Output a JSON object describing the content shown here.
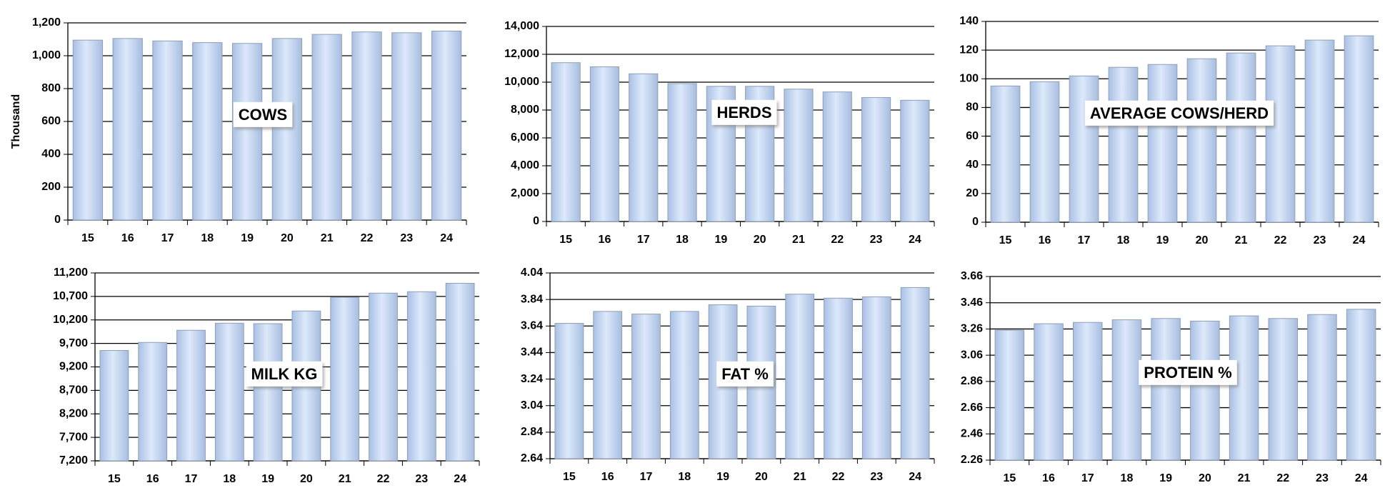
{
  "chart_data": [
    {
      "type": "bar",
      "title": "COWS",
      "y_label": "Thousand",
      "categories": [
        "15",
        "16",
        "17",
        "18",
        "19",
        "20",
        "21",
        "22",
        "23",
        "24"
      ],
      "values": [
        1095,
        1105,
        1090,
        1080,
        1075,
        1105,
        1130,
        1145,
        1140,
        1150
      ],
      "color": "#c9dcf7",
      "ylim": [
        0,
        1200
      ],
      "yticks": [
        0,
        200,
        400,
        600,
        800,
        {
          "value": 1000,
          "label": "1,000"
        },
        {
          "value": 1200,
          "label": "1,200"
        }
      ],
      "grid": true
    },
    {
      "type": "bar",
      "title": "HERDS",
      "categories": [
        "15",
        "16",
        "17",
        "18",
        "19",
        "20",
        "21",
        "22",
        "23",
        "24"
      ],
      "values": [
        11400,
        11100,
        10600,
        9900,
        9700,
        9700,
        9500,
        9300,
        8900,
        8700
      ],
      "color": "#c9dcf7",
      "ylim": [
        0,
        14000
      ],
      "yticks": [
        0,
        {
          "value": 2000,
          "label": "2,000"
        },
        {
          "value": 4000,
          "label": "4,000"
        },
        {
          "value": 6000,
          "label": "6,000"
        },
        {
          "value": 8000,
          "label": "8,000"
        },
        {
          "value": 10000,
          "label": "10,000"
        },
        {
          "value": 12000,
          "label": "12,000"
        },
        {
          "value": 14000,
          "label": "14,000"
        }
      ],
      "grid": true
    },
    {
      "type": "bar",
      "title": "AVERAGE COWS/HERD",
      "categories": [
        "15",
        "16",
        "17",
        "18",
        "19",
        "20",
        "21",
        "22",
        "23",
        "24"
      ],
      "values": [
        95,
        98,
        102,
        108,
        110,
        114,
        118,
        123,
        127,
        130
      ],
      "color": "#c9dcf7",
      "ylim": [
        0,
        140
      ],
      "yticks": [
        0,
        20,
        40,
        60,
        80,
        100,
        120,
        140
      ],
      "grid": true
    },
    {
      "type": "bar",
      "title": "MILK KG",
      "categories": [
        "15",
        "16",
        "17",
        "18",
        "19",
        "20",
        "21",
        "22",
        "23",
        "24"
      ],
      "values": [
        9550,
        9720,
        9980,
        10130,
        10120,
        10390,
        10680,
        10770,
        10800,
        10980
      ],
      "color": "#c9dcf7",
      "ylim": [
        7200,
        11200
      ],
      "yticks": [
        {
          "value": 7200,
          "label": "7,200"
        },
        {
          "value": 7700,
          "label": "7,700"
        },
        {
          "value": 8200,
          "label": "8,200"
        },
        {
          "value": 8700,
          "label": "8,700"
        },
        {
          "value": 9200,
          "label": "9,200"
        },
        {
          "value": 9700,
          "label": "9,700"
        },
        {
          "value": 10200,
          "label": "10,200"
        },
        {
          "value": 10700,
          "label": "10,700"
        },
        {
          "value": 11200,
          "label": "11,200"
        }
      ],
      "grid": true
    },
    {
      "type": "bar",
      "title": "FAT %",
      "categories": [
        "15",
        "16",
        "17",
        "18",
        "19",
        "20",
        "21",
        "22",
        "23",
        "24"
      ],
      "values": [
        3.66,
        3.75,
        3.73,
        3.75,
        3.8,
        3.79,
        3.88,
        3.85,
        3.86,
        3.93
      ],
      "color": "#c9dcf7",
      "ylim": [
        2.64,
        4.04
      ],
      "yticks": [
        2.64,
        2.84,
        3.04,
        3.24,
        3.44,
        3.64,
        3.84,
        4.04
      ],
      "grid": true
    },
    {
      "type": "bar",
      "title": "PROTEIN %",
      "categories": [
        "15",
        "16",
        "17",
        "18",
        "19",
        "20",
        "21",
        "22",
        "23",
        "24"
      ],
      "values": [
        3.25,
        3.3,
        3.31,
        3.33,
        3.34,
        3.32,
        3.36,
        3.34,
        3.37,
        3.41
      ],
      "color": "#c9dcf7",
      "ylim": [
        2.26,
        3.66
      ],
      "yticks": [
        2.26,
        2.46,
        2.66,
        2.86,
        3.06,
        3.26,
        3.46,
        3.66
      ],
      "grid": true
    }
  ]
}
